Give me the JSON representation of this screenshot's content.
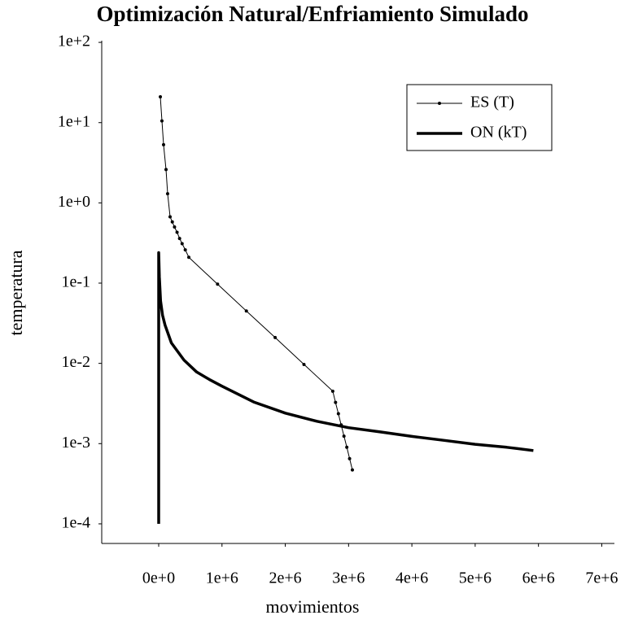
{
  "chart_data": {
    "type": "line",
    "title": "Optimización Natural/Enfriamiento Simulado",
    "xlabel": "movimientos",
    "ylabel": "temperatura",
    "ylog": true,
    "xlim": [
      -900000,
      7200000
    ],
    "ylim": [
      5.7e-05,
      105
    ],
    "xticks": [
      {
        "value": 0,
        "label": "0e+0"
      },
      {
        "value": 1000000,
        "label": "1e+6"
      },
      {
        "value": 2000000,
        "label": "2e+6"
      },
      {
        "value": 3000000,
        "label": "3e+6"
      },
      {
        "value": 4000000,
        "label": "4e+6"
      },
      {
        "value": 5000000,
        "label": "5e+6"
      },
      {
        "value": 6000000,
        "label": "6e+6"
      },
      {
        "value": 7000000,
        "label": "7e+6"
      }
    ],
    "yticks": [
      {
        "value": 100,
        "label": "1e+2"
      },
      {
        "value": 10,
        "label": "1e+1"
      },
      {
        "value": 1,
        "label": "1e+0"
      },
      {
        "value": 0.1,
        "label": "1e-1"
      },
      {
        "value": 0.01,
        "label": "1e-2"
      },
      {
        "value": 0.001,
        "label": "1e-3"
      },
      {
        "value": 0.0001,
        "label": "1e-4"
      }
    ],
    "legend": "top-right",
    "series": [
      {
        "name": "ES (T)",
        "color": "#000000",
        "linewidth": 1,
        "marker": true,
        "x": [
          26000,
          51000,
          77000,
          116000,
          141000,
          180000,
          215000,
          250000,
          290000,
          330000,
          370000,
          420000,
          476000,
          930000,
          1385000,
          1840000,
          2295000,
          2750000,
          2794000,
          2839000,
          2883000,
          2927000,
          2972000,
          3016000,
          3060000
        ],
        "values": [
          21,
          10.5,
          5.3,
          2.6,
          1.3,
          0.67,
          0.58,
          0.5,
          0.43,
          0.36,
          0.31,
          0.26,
          0.21,
          0.097,
          0.045,
          0.021,
          0.0097,
          0.0045,
          0.00326,
          0.00236,
          0.00171,
          0.00124,
          0.0009,
          0.00065,
          0.00047
        ]
      },
      {
        "name": "ON (kT)",
        "color": "#000000",
        "linewidth": 3.5,
        "marker": false,
        "x": [
          0,
          0,
          10000,
          30000,
          60000,
          100000,
          200000,
          400000,
          600000,
          800000,
          1000000,
          1500000,
          2000000,
          2500000,
          3000000,
          3500000,
          4000000,
          4500000,
          5000000,
          5500000,
          5920000
        ],
        "values": [
          0.0001,
          0.24,
          0.12,
          0.06,
          0.04,
          0.03,
          0.018,
          0.011,
          0.0078,
          0.0063,
          0.0052,
          0.0033,
          0.0024,
          0.0019,
          0.00158,
          0.0014,
          0.00123,
          0.0011,
          0.00098,
          0.0009,
          0.00082
        ]
      }
    ]
  }
}
